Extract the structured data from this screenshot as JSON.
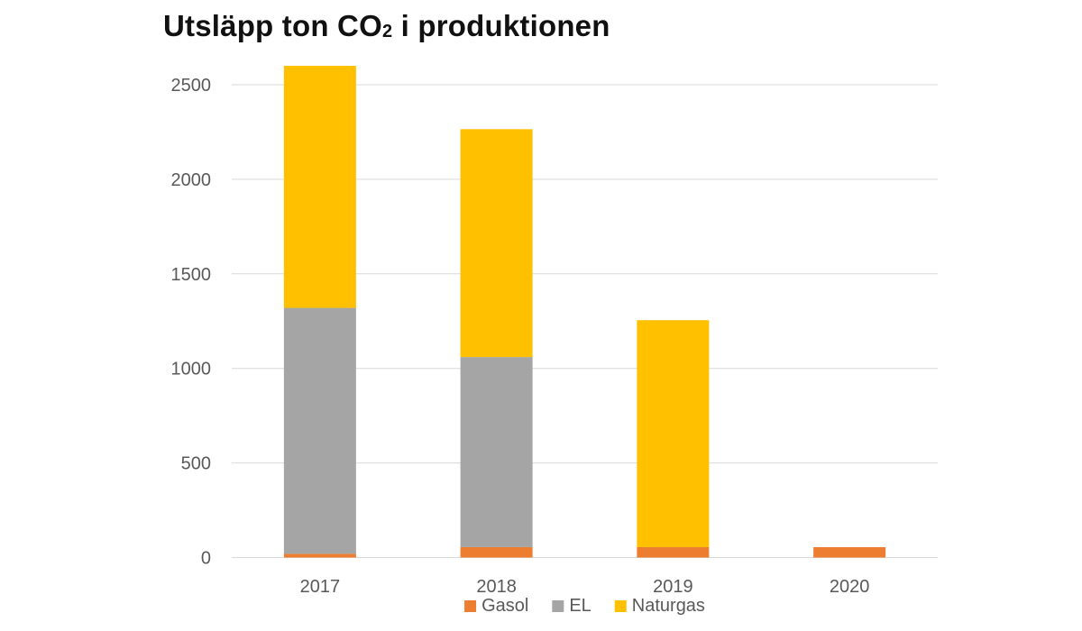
{
  "chart_data": {
    "type": "bar",
    "stacked": true,
    "title": "Utsläpp ton CO",
    "title_subscript": "2",
    "title_suffix": " i produktionen",
    "xlabel": "",
    "ylabel": "",
    "categories": [
      "2017",
      "2018",
      "2019",
      "2020"
    ],
    "ylim": [
      0,
      2500
    ],
    "yticks": [
      0,
      500,
      1000,
      1500,
      2000,
      2500
    ],
    "grid": true,
    "legend_position": "bottom",
    "series": [
      {
        "name": "Gasol",
        "color": "#ED7D31",
        "values": [
          20,
          55,
          55,
          55
        ]
      },
      {
        "name": "EL",
        "color": "#A5A5A5",
        "values": [
          1300,
          1005,
          0,
          0
        ]
      },
      {
        "name": "Naturgas",
        "color": "#FFC000",
        "values": [
          1280,
          1205,
          1200,
          0
        ]
      }
    ]
  }
}
